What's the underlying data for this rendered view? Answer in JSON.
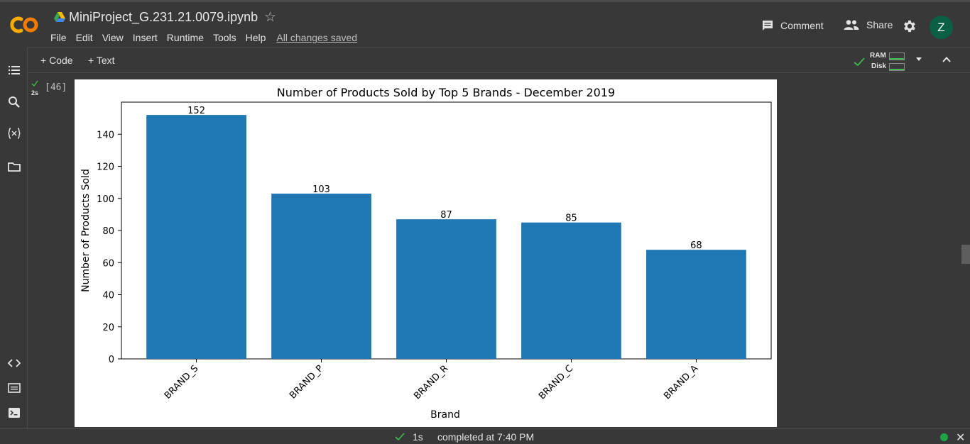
{
  "header": {
    "title": "MiniProject_G.231.21.0079.ipynb",
    "menu": [
      "File",
      "Edit",
      "View",
      "Insert",
      "Runtime",
      "Tools",
      "Help"
    ],
    "save_status": "All changes saved",
    "comment_label": "Comment",
    "share_label": "Share",
    "avatar_letter": "Z"
  },
  "toolbar": {
    "add_code_label": "+ Code",
    "add_text_label": "+ Text",
    "ram_label": "RAM",
    "disk_label": "Disk"
  },
  "cell": {
    "exec_time": "2s",
    "exec_count": "[46]"
  },
  "status": {
    "duration": "1s",
    "completed": "completed at 7:40 PM"
  },
  "colors": {
    "bar": "#1f77b4",
    "accent_green": "#1ea446",
    "avatar": "#0b5f45"
  },
  "chart_data": {
    "type": "bar",
    "title": "Number of Products Sold by Top 5 Brands - December 2019",
    "xlabel": "Brand",
    "ylabel": "Number of Products Sold",
    "categories": [
      "BRAND_S",
      "BRAND_P",
      "BRAND_R",
      "BRAND_C",
      "BRAND_A"
    ],
    "values": [
      152,
      103,
      87,
      85,
      68
    ],
    "ylim": [
      0,
      160
    ],
    "yticks": [
      0,
      20,
      40,
      60,
      80,
      100,
      120,
      140
    ],
    "grid": false,
    "legend": "none"
  }
}
